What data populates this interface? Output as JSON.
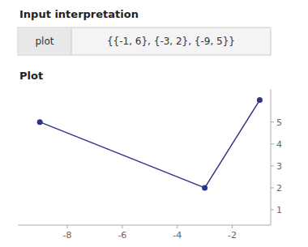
{
  "chart_data": {
    "type": "line",
    "title": "Input interpretation",
    "subtitle": "Plot",
    "annotations": [
      "plot",
      "{{-1, 6}, {-3, 2}, {-9, 5}}"
    ],
    "x": [
      -9,
      -3,
      -1
    ],
    "values": [
      5,
      2,
      6
    ],
    "color": "#2d3483",
    "marker": "circle",
    "xlim": [
      -9.8,
      -0.6
    ],
    "ylim": [
      0.3,
      6.5
    ],
    "xticks": [
      -8,
      -6,
      -4,
      -2
    ],
    "yticks": [
      1,
      2,
      3,
      4,
      5
    ],
    "grid": false
  }
}
